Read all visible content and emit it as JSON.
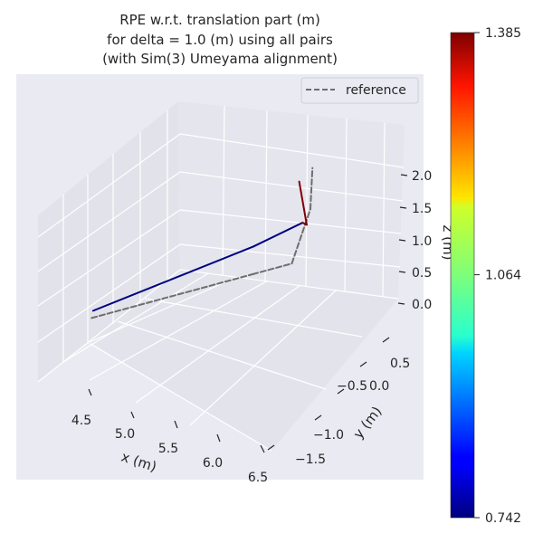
{
  "chart_data": {
    "type": "line",
    "projection": "3d",
    "title": [
      "RPE w.r.t. translation part (m)",
      "for delta = 1.0 (m) using all pairs",
      "(with Sim(3) Umeyama alignment)"
    ],
    "xlabel": "x (m)",
    "ylabel": "y (m)",
    "zlabel": "z (m)",
    "x_ticks": [
      "4.5",
      "5.0",
      "5.5",
      "6.0",
      "6.5"
    ],
    "y_ticks": [
      "−1.5",
      "−1.0",
      "−0.5",
      "0.0",
      "0.5"
    ],
    "z_ticks": [
      "0.0",
      "0.5",
      "1.0",
      "1.5",
      "2.0"
    ],
    "grid": true,
    "legend": {
      "placement": "top-right",
      "entries": [
        "reference"
      ]
    },
    "series": [
      {
        "name": "reference",
        "style": "dashed",
        "color": "#6e6e6e",
        "points": [
          {
            "x": 4.52,
            "y": -0.97,
            "z": 0.0
          },
          {
            "x": 6.08,
            "y": -0.97,
            "z": 0.0
          },
          {
            "x": 6.46,
            "y": -0.97,
            "z": 0.0
          },
          {
            "x": 6.64,
            "y": -0.97,
            "z": 0.78
          },
          {
            "x": 6.66,
            "y": -0.97,
            "z": 1.42
          }
        ]
      },
      {
        "style": "solid",
        "colored_by": "error",
        "points": [
          {
            "x": 4.52,
            "y": -0.93,
            "z": 0.08,
            "error": 0.742
          },
          {
            "x": 6.08,
            "y": -0.95,
            "z": 0.42,
            "error": 0.742
          },
          {
            "x": 6.54,
            "y": -0.9,
            "z": 0.55,
            "error": 0.742
          },
          {
            "x": 6.58,
            "y": -0.9,
            "z": 0.5,
            "error": 1.385
          },
          {
            "x": 6.5,
            "y": -0.88,
            "z": 1.2,
            "error": 1.385
          }
        ]
      }
    ],
    "colorbar": {
      "colormap": "jet",
      "min": 0.742,
      "max": 1.385,
      "ticks": [
        "0.742",
        "1.064",
        "1.385"
      ],
      "tick_values": [
        0.742,
        1.064,
        1.385
      ]
    }
  }
}
